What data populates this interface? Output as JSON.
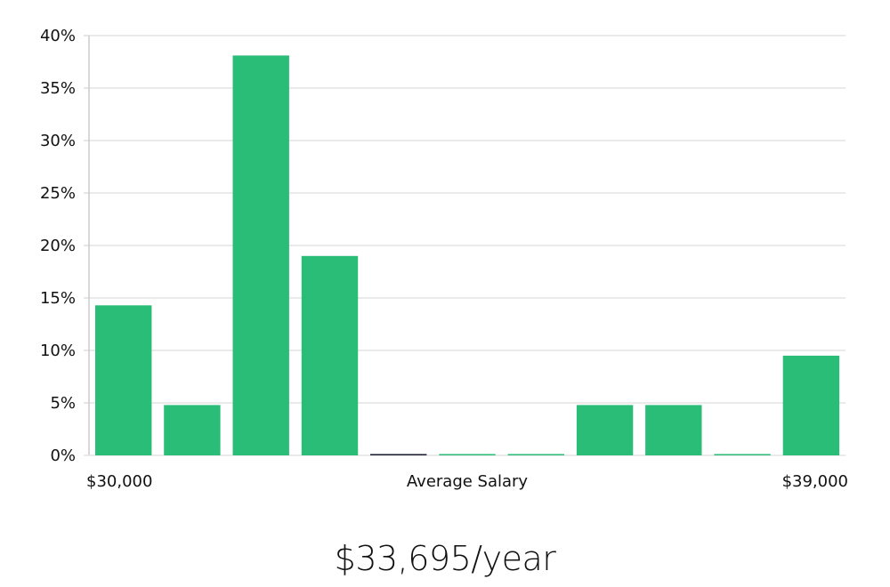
{
  "chart_data": {
    "type": "bar",
    "categories": [
      "1",
      "2",
      "3",
      "4",
      "5",
      "6",
      "7",
      "8",
      "9",
      "10",
      "11"
    ],
    "values": [
      14.3,
      4.8,
      38.1,
      19.0,
      0,
      0,
      0,
      4.8,
      4.8,
      0,
      9.5
    ],
    "ylim": [
      0,
      40
    ],
    "yticks": [
      "0%",
      "5%",
      "10%",
      "15%",
      "20%",
      "25%",
      "30%",
      "35%",
      "40%"
    ],
    "ytick_values": [
      0,
      5,
      10,
      15,
      20,
      25,
      30,
      35,
      40
    ],
    "x_min_label": "$30,000",
    "x_max_label": "$39,000",
    "xlabel": "Average Salary",
    "grid": true,
    "bar_color": "#2abd77",
    "zero_bar_color": "#1a1a2e",
    "grid_color": "#e3e3e3",
    "axis_color": "#cccccc"
  },
  "summary": {
    "salary": "$33,695/year"
  }
}
